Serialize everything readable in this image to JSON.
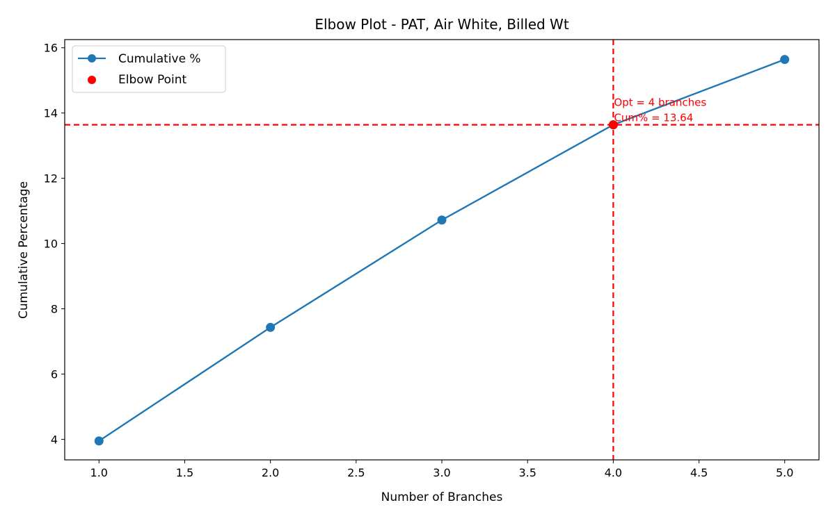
{
  "chart_data": {
    "type": "line",
    "title": "Elbow Plot - PAT, Air White, Billed Wt",
    "xlabel": "Number of Branches",
    "ylabel": "Cumulative Percentage",
    "x": [
      1,
      2,
      3,
      4,
      5
    ],
    "series": [
      {
        "name": "Cumulative %",
        "values": [
          3.95,
          7.43,
          10.72,
          13.64,
          15.64
        ],
        "color": "#1f77b4"
      }
    ],
    "elbow": {
      "name": "Elbow Point",
      "x": 4,
      "y": 13.64,
      "color": "#ff0000"
    },
    "annotation": {
      "line1": "Opt = 4 branches",
      "line2": "Cum% = 13.64",
      "color": "#ff0000"
    },
    "xlim": [
      0.8,
      5.2
    ],
    "ylim": [
      3.37,
      16.25
    ],
    "xticks": [
      "1.0",
      "1.5",
      "2.0",
      "2.5",
      "3.0",
      "3.5",
      "4.0",
      "4.5",
      "5.0"
    ],
    "yticks": [
      "4",
      "6",
      "8",
      "10",
      "12",
      "14",
      "16"
    ],
    "grid": false,
    "legend_position": "top-left"
  }
}
